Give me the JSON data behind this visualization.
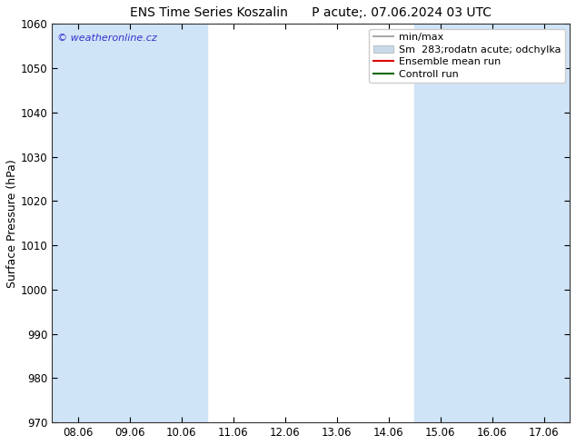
{
  "title": "ENS Time Series Koszalin      P acute;. 07.06.2024 03 UTC",
  "ylabel": "Surface Pressure (hPa)",
  "ylim": [
    970,
    1060
  ],
  "yticks": [
    970,
    980,
    990,
    1000,
    1010,
    1020,
    1030,
    1040,
    1050,
    1060
  ],
  "xlabels": [
    "08.06",
    "09.06",
    "10.06",
    "11.06",
    "12.06",
    "13.06",
    "14.06",
    "15.06",
    "16.06",
    "17.06"
  ],
  "x_positions": [
    0,
    1,
    2,
    3,
    4,
    5,
    6,
    7,
    8,
    9
  ],
  "background_color": "#ffffff",
  "plot_bg_color": "#ffffff",
  "shaded_indices": [
    0,
    1,
    2,
    7,
    8,
    9
  ],
  "shade_color": "#d0e4f7",
  "copyright_text": "© weatheronline.cz",
  "copyright_color": "#3333cc",
  "legend_label_minmax": "min/max",
  "legend_label_sm": "Sm  283;rodatn acute; odchylka",
  "legend_label_ensemble": "Ensemble mean run",
  "legend_label_control": "Controll run",
  "color_minmax": "#aaaaaa",
  "color_sm": "#c8daea",
  "color_ensemble": "#dd0000",
  "color_control": "#006600",
  "title_fontsize": 10,
  "tick_fontsize": 8.5,
  "ylabel_fontsize": 9,
  "legend_fontsize": 8
}
